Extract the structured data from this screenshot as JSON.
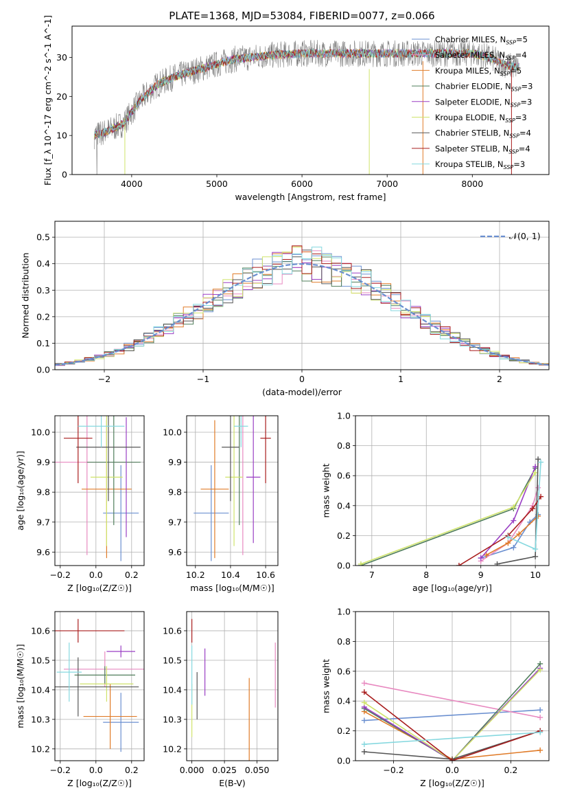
{
  "figure_title": "PLATE=1368, MJD=53084, FIBERID=0077, z=0.066",
  "series": [
    {
      "name": "Chabrier MILES, N$_{SSP}$=5",
      "label": "Chabrier MILES, N",
      "sub": "SSP",
      "suffix": "=5",
      "color": "#6a8fd0"
    },
    {
      "name": "Salpeter MILES, N$_{SSP}$=4",
      "label": "Salpeter MILES, N",
      "sub": "SSP",
      "suffix": "=4",
      "color": "#e889c0"
    },
    {
      "name": "Kroupa MILES, N$_{SSP}$=5",
      "label": "Kroupa MILES, N",
      "sub": "SSP",
      "suffix": "=5",
      "color": "#e07b28"
    },
    {
      "name": "Chabrier ELODIE, N$_{SSP}$=3",
      "label": "Chabrier ELODIE, N",
      "sub": "SSP",
      "suffix": "=3",
      "color": "#4f7d5a"
    },
    {
      "name": "Salpeter ELODIE, N$_{SSP}$=3",
      "label": "Salpeter ELODIE, N",
      "sub": "SSP",
      "suffix": "=3",
      "color": "#9a3fc4"
    },
    {
      "name": "Kroupa ELODIE, N$_{SSP}$=3",
      "label": "Kroupa ELODIE, N",
      "sub": "SSP",
      "suffix": "=3",
      "color": "#cfe36a"
    },
    {
      "name": "Chabrier STELIB, N$_{SSP}$=4",
      "label": "Chabrier STELIB, N",
      "sub": "SSP",
      "suffix": "=4",
      "color": "#555555"
    },
    {
      "name": "Salpeter STELIB, N$_{SSP}$=4",
      "label": "Salpeter STELIB, N",
      "sub": "SSP",
      "suffix": "=4",
      "color": "#a81c1c"
    },
    {
      "name": "Kroupa STELIB, N$_{SSP}$=3",
      "label": "Kroupa STELIB, N",
      "sub": "SSP",
      "suffix": "=3",
      "color": "#85d8df"
    }
  ],
  "chart_data": [
    {
      "id": "spectrum",
      "type": "line",
      "xlabel": "wavelength [Angstrom, rest frame]",
      "ylabel": "Flux [f_λ 10^-17 erg cm^-2 s^-1 A^-1]",
      "xlim": [
        3300,
        8900
      ],
      "ylim": [
        0,
        38
      ],
      "xticks": [
        4000,
        5000,
        6000,
        7000,
        8000
      ],
      "yticks": [
        0,
        10,
        20,
        30
      ],
      "grid": false,
      "legend": "upper right",
      "observed_color": "#808080",
      "continuum": [
        [
          3560,
          10
        ],
        [
          3700,
          11
        ],
        [
          3900,
          13
        ],
        [
          4000,
          16
        ],
        [
          4100,
          19
        ],
        [
          4300,
          23
        ],
        [
          4500,
          25
        ],
        [
          4800,
          27
        ],
        [
          5200,
          29.5
        ],
        [
          5600,
          30.5
        ],
        [
          6000,
          31
        ],
        [
          6500,
          31
        ],
        [
          7000,
          31
        ],
        [
          7500,
          31
        ],
        [
          8000,
          31
        ],
        [
          8200,
          30
        ],
        [
          8400,
          28
        ],
        [
          8550,
          27.5
        ]
      ]
    },
    {
      "id": "residuals",
      "type": "line",
      "xlabel": "(data-model)/error",
      "ylabel": "Normed distribution",
      "xlim": [
        -2.5,
        2.5
      ],
      "ylim": [
        0,
        0.56
      ],
      "xticks": [
        -2,
        -1,
        0,
        1,
        2
      ],
      "yticks": [
        0,
        0.1,
        0.2,
        0.3,
        0.4,
        0.5
      ],
      "grid": true,
      "legend": "upper right",
      "gaussian_label": "𝒩(0, 1)",
      "gaussian_color": "#6a8fd0"
    },
    {
      "id": "age_vs_Z",
      "type": "scatter",
      "xlabel": "Z [log₁₀(Z/Z☉)]",
      "ylabel": "age  [log₁₀(age/yr)]",
      "xlim": [
        -0.23,
        0.27
      ],
      "ylim": [
        9.555,
        10.055
      ],
      "xticks": [
        -0.2,
        0.0,
        0.2
      ],
      "yticks": [
        9.6,
        9.7,
        9.8,
        9.9,
        10.0
      ],
      "grid": true,
      "points": [
        {
          "series": 0,
          "x": 0.14,
          "xerr": 0.1,
          "y": 9.73,
          "yerr": 0.16
        },
        {
          "series": 1,
          "x": -0.05,
          "xerr": 0.28,
          "y": 9.9,
          "yerr": 0.31
        },
        {
          "series": 2,
          "x": 0.06,
          "xerr": 0.14,
          "y": 9.81,
          "yerr": 0.23
        },
        {
          "series": 3,
          "x": 0.1,
          "xerr": 0.15,
          "y": 9.9,
          "yerr": 0.21
        },
        {
          "series": 4,
          "x": 0.17,
          "xerr": 0.0,
          "y": 9.85,
          "yerr": 0.2
        },
        {
          "series": 5,
          "x": 0.06,
          "xerr": 0.09,
          "y": 9.85,
          "yerr": 0.23
        },
        {
          "series": 6,
          "x": 0.07,
          "xerr": 0.18,
          "y": 9.95,
          "yerr": 0.18
        },
        {
          "series": 7,
          "x": -0.1,
          "xerr": 0.08,
          "y": 9.98,
          "yerr": 0.15
        },
        {
          "series": 8,
          "x": 0.03,
          "xerr": 0.13,
          "y": 10.02,
          "yerr": 0.07
        }
      ]
    },
    {
      "id": "age_vs_mass",
      "type": "scatter",
      "xlabel": "mass [log₁₀(M/M☉)]",
      "ylabel": "",
      "xlim": [
        10.15,
        10.67
      ],
      "ylim": [
        9.555,
        10.055
      ],
      "xticks": [
        10.2,
        10.4,
        10.6
      ],
      "yticks": [
        9.6,
        9.7,
        9.8,
        9.9,
        10.0
      ],
      "grid": true,
      "points": [
        {
          "series": 0,
          "x": 10.29,
          "xerr": 0.1,
          "y": 9.73,
          "yerr": 0.16
        },
        {
          "series": 1,
          "x": 10.47,
          "xerr": 0.0,
          "y": 9.9,
          "yerr": 0.31
        },
        {
          "series": 2,
          "x": 10.31,
          "xerr": 0.08,
          "y": 9.81,
          "yerr": 0.23
        },
        {
          "series": 3,
          "x": 10.45,
          "xerr": 0.0,
          "y": 9.9,
          "yerr": 0.21
        },
        {
          "series": 4,
          "x": 10.53,
          "xerr": 0.04,
          "y": 9.85,
          "yerr": 0.22
        },
        {
          "series": 5,
          "x": 10.42,
          "xerr": 0.05,
          "y": 9.85,
          "yerr": 0.23
        },
        {
          "series": 6,
          "x": 10.4,
          "xerr": 0.05,
          "y": 9.95,
          "yerr": 0.18
        },
        {
          "series": 7,
          "x": 10.6,
          "xerr": 0.03,
          "y": 9.98,
          "yerr": 0.15
        },
        {
          "series": 8,
          "x": 10.46,
          "xerr": 0.04,
          "y": 10.02,
          "yerr": 0.07
        }
      ]
    },
    {
      "id": "weight_vs_age",
      "type": "line",
      "xlabel": "age  [log₁₀(age/yr)]",
      "ylabel": "mass weight",
      "xlim": [
        6.7,
        10.25
      ],
      "ylim": [
        0,
        1
      ],
      "xticks": [
        7,
        8,
        9,
        10
      ],
      "yticks": [
        0,
        0.2,
        0.4,
        0.6,
        0.8,
        1.0
      ],
      "grid": true,
      "lines": [
        {
          "series": 0,
          "pts": [
            [
              9.0,
              0.05
            ],
            [
              9.6,
              0.12
            ],
            [
              9.9,
              0.29
            ],
            [
              10.05,
              0.34
            ]
          ]
        },
        {
          "series": 1,
          "pts": [
            [
              9.0,
              0.03
            ],
            [
              9.5,
              0.15
            ],
            [
              9.95,
              0.4
            ],
            [
              10.05,
              0.52
            ]
          ]
        },
        {
          "series": 2,
          "pts": [
            [
              9.1,
              0.07
            ],
            [
              9.5,
              0.15
            ],
            [
              9.7,
              0.21
            ],
            [
              10.05,
              0.33
            ]
          ]
        },
        {
          "series": 3,
          "pts": [
            [
              6.8,
              0.0
            ],
            [
              9.6,
              0.38
            ],
            [
              10.0,
              0.65
            ]
          ]
        },
        {
          "series": 4,
          "pts": [
            [
              9.0,
              0.05
            ],
            [
              9.6,
              0.3
            ],
            [
              10.0,
              0.66
            ]
          ]
        },
        {
          "series": 5,
          "pts": [
            [
              6.8,
              0.01
            ],
            [
              9.6,
              0.39
            ],
            [
              10.0,
              0.62
            ]
          ]
        },
        {
          "series": 6,
          "pts": [
            [
              9.3,
              0.01
            ],
            [
              10.0,
              0.06
            ],
            [
              10.05,
              0.71
            ]
          ]
        },
        {
          "series": 7,
          "pts": [
            [
              8.6,
              0.0
            ],
            [
              9.5,
              0.2
            ],
            [
              9.95,
              0.38
            ],
            [
              10.1,
              0.46
            ]
          ]
        },
        {
          "series": 8,
          "pts": [
            [
              9.5,
              0.19
            ],
            [
              10.0,
              0.11
            ],
            [
              10.1,
              0.69
            ]
          ]
        }
      ]
    },
    {
      "id": "mass_vs_Z",
      "type": "scatter",
      "xlabel": "Z [log₁₀(Z/Z☉)]",
      "ylabel": "mass [log₁₀(M/M☉)]",
      "xlim": [
        -0.23,
        0.27
      ],
      "ylim": [
        10.16,
        10.665
      ],
      "xticks": [
        -0.2,
        0.0,
        0.2
      ],
      "yticks": [
        10.2,
        10.3,
        10.4,
        10.5,
        10.6
      ],
      "grid": true,
      "points": [
        {
          "series": 0,
          "x": 0.14,
          "xerr": 0.1,
          "y": 10.29,
          "yerr": 0.1
        },
        {
          "series": 1,
          "x": 0.05,
          "xerr": 0.23,
          "y": 10.47,
          "yerr": 0.06
        },
        {
          "series": 2,
          "x": 0.08,
          "xerr": 0.15,
          "y": 10.31,
          "yerr": 0.11
        },
        {
          "series": 3,
          "x": 0.05,
          "xerr": 0.17,
          "y": 10.45,
          "yerr": 0.03
        },
        {
          "series": 4,
          "x": 0.14,
          "xerr": 0.08,
          "y": 10.53,
          "yerr": 0.02
        },
        {
          "series": 5,
          "x": 0.06,
          "xerr": 0.15,
          "y": 10.42,
          "yerr": 0.06
        },
        {
          "series": 6,
          "x": -0.1,
          "xerr": 0.34,
          "y": 10.41,
          "yerr": 0.1
        },
        {
          "series": 7,
          "x": -0.1,
          "xerr": 0.26,
          "y": 10.6,
          "yerr": 0.04
        },
        {
          "series": 8,
          "x": -0.15,
          "xerr": 0.07,
          "y": 10.46,
          "yerr": 0.1
        }
      ]
    },
    {
      "id": "mass_vs_EBV",
      "type": "scatter",
      "xlabel": "E(B-V)",
      "ylabel": "",
      "xlim": [
        -0.004,
        0.066
      ],
      "ylim": [
        10.16,
        10.665
      ],
      "xticks": [
        0.0,
        0.025,
        0.05
      ],
      "yticks": [
        10.2,
        10.3,
        10.4,
        10.5,
        10.6
      ],
      "grid": true,
      "points": [
        {
          "series": 2,
          "x": 0.044,
          "xerr": 0,
          "y": 10.29,
          "yerr": 0.15
        },
        {
          "series": 1,
          "x": 0.064,
          "xerr": 0,
          "y": 10.45,
          "yerr": 0.11
        },
        {
          "series": 6,
          "x": 0.004,
          "xerr": 0,
          "y": 10.38,
          "yerr": 0.08
        },
        {
          "series": 5,
          "x": 0.0,
          "xerr": 0,
          "y": 10.33,
          "yerr": 0.09
        },
        {
          "series": 4,
          "x": 0.01,
          "xerr": 0,
          "y": 10.46,
          "yerr": 0.08
        },
        {
          "series": 7,
          "x": 0.0,
          "xerr": 0,
          "y": 10.6,
          "yerr": 0.04
        },
        {
          "series": 8,
          "x": 0.0,
          "xerr": 0,
          "y": 10.45,
          "yerr": 0.1
        }
      ]
    },
    {
      "id": "weight_vs_Z",
      "type": "line",
      "xlabel": "Z [log₁₀(Z/Z☉)]",
      "ylabel": "mass weight",
      "xlim": [
        -0.33,
        0.33
      ],
      "ylim": [
        0,
        1
      ],
      "xticks": [
        -0.2,
        0.0,
        0.2
      ],
      "yticks": [
        0,
        0.2,
        0.4,
        0.6,
        0.8,
        1.0
      ],
      "grid": true,
      "lines": [
        {
          "series": 0,
          "pts": [
            [
              -0.3,
              0.27
            ],
            [
              0.3,
              0.34
            ]
          ]
        },
        {
          "series": 1,
          "pts": [
            [
              -0.3,
              0.52
            ],
            [
              0.3,
              0.29
            ]
          ]
        },
        {
          "series": 2,
          "pts": [
            [
              -0.3,
              0.33
            ],
            [
              0.0,
              0.01
            ],
            [
              0.3,
              0.07
            ]
          ]
        },
        {
          "series": 3,
          "pts": [
            [
              -0.3,
              0.35
            ],
            [
              0.0,
              0.0
            ],
            [
              0.3,
              0.65
            ]
          ]
        },
        {
          "series": 4,
          "pts": [
            [
              -0.3,
              0.36
            ],
            [
              0.0,
              0.0
            ],
            [
              0.3,
              0.62
            ]
          ]
        },
        {
          "series": 5,
          "pts": [
            [
              -0.3,
              0.39
            ],
            [
              0.0,
              0.0
            ],
            [
              0.3,
              0.61
            ]
          ]
        },
        {
          "series": 6,
          "pts": [
            [
              -0.3,
              0.06
            ],
            [
              0.0,
              0.01
            ],
            [
              0.3,
              0.2
            ]
          ]
        },
        {
          "series": 7,
          "pts": [
            [
              -0.3,
              0.46
            ],
            [
              0.0,
              0.0
            ],
            [
              0.3,
              0.2
            ]
          ]
        },
        {
          "series": 8,
          "pts": [
            [
              -0.3,
              0.11
            ],
            [
              0.3,
              0.19
            ]
          ]
        }
      ]
    }
  ]
}
